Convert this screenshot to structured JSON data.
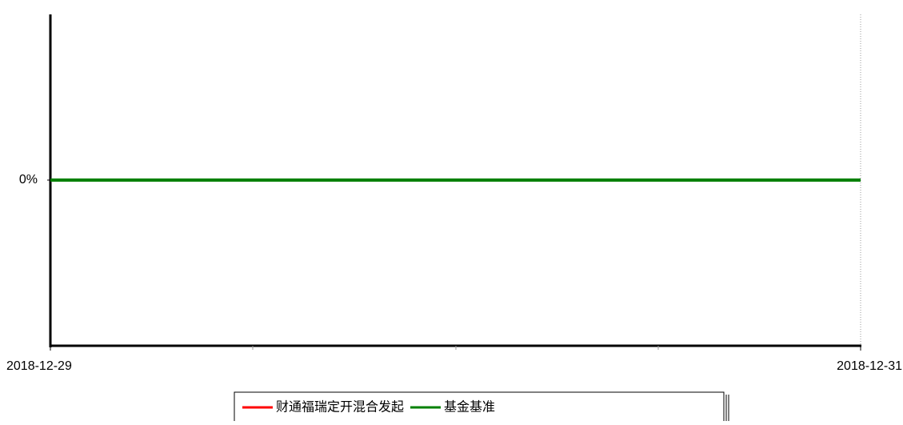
{
  "chart_data": {
    "type": "line",
    "x": [
      "2018-12-29",
      "2018-12-31"
    ],
    "series": [
      {
        "name": "财通福瑞定开混合发起",
        "color": "#ff0000",
        "values": [
          0,
          0
        ]
      },
      {
        "name": "基金基准",
        "color": "#008000",
        "values": [
          0,
          0
        ]
      }
    ],
    "ylim": [
      -1,
      1
    ],
    "yticks": [
      {
        "value": 0,
        "label": "0%"
      }
    ],
    "legend": "bottom"
  }
}
